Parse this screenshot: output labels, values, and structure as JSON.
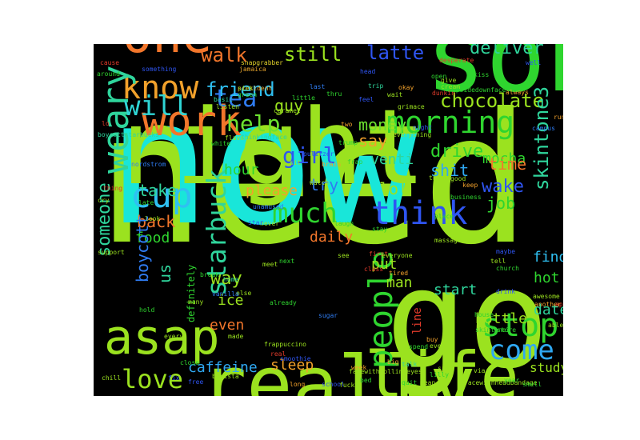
{
  "words": [
    {
      "text": "need",
      "color": "#9be21f"
    },
    {
      "text": "now",
      "color": "#19e6d9"
    },
    {
      "text": "go",
      "color": "#9be21f"
    },
    {
      "text": "right",
      "color": "#9be21f"
    },
    {
      "text": "sob",
      "color": "#2fd52f"
    },
    {
      "text": "really",
      "color": "#9be21f"
    },
    {
      "text": "life",
      "color": "#9be21f"
    },
    {
      "text": "asap",
      "color": "#9be21f"
    },
    {
      "text": "one",
      "color": "#f2762b"
    },
    {
      "text": "work",
      "color": "#f2762b"
    },
    {
      "text": "know",
      "color": "#f2a12b"
    },
    {
      "text": "weary",
      "color": "#2fd59c"
    },
    {
      "text": "will",
      "color": "#2fd5d5"
    },
    {
      "text": "tea",
      "color": "#2f7cf2"
    },
    {
      "text": "morning",
      "color": "#2fd52f"
    },
    {
      "text": "think",
      "color": "#2f55f2"
    },
    {
      "text": "much",
      "color": "#2fd52f"
    },
    {
      "text": "cup",
      "color": "#2fc0f2"
    },
    {
      "text": "starbuck",
      "color": "#2fd59c"
    },
    {
      "text": "people",
      "color": "#2fd52f"
    },
    {
      "text": "stop",
      "color": "#2fd52f"
    },
    {
      "text": "love",
      "color": "#9be21f"
    },
    {
      "text": "come",
      "color": "#2fa8f2"
    },
    {
      "text": "help",
      "color": "#6ce22f"
    },
    {
      "text": "girl",
      "color": "#2f55f2"
    },
    {
      "text": "chocolate",
      "color": "#9be21f"
    },
    {
      "text": "walk",
      "color": "#f2762b"
    },
    {
      "text": "still",
      "color": "#9be21f"
    },
    {
      "text": "latte",
      "color": "#2f55f2"
    },
    {
      "text": "deliver",
      "color": "#2fd59c"
    },
    {
      "text": "friend",
      "color": "#2fc0f2"
    },
    {
      "text": "guy",
      "color": "#9be21f"
    },
    {
      "text": "money",
      "color": "#6ce22f"
    },
    {
      "text": "say",
      "color": "#f2a12b"
    },
    {
      "text": "venti",
      "color": "#2fd59c"
    },
    {
      "text": "mocha",
      "color": "#2fd52f"
    },
    {
      "text": "hour",
      "color": "#2fd52f"
    },
    {
      "text": "drive",
      "color": "#2fd52f"
    },
    {
      "text": "try",
      "color": "#2f7cf2"
    },
    {
      "text": "shit",
      "color": "#2fa8f2"
    },
    {
      "text": "time",
      "color": "#f2762b"
    },
    {
      "text": "take",
      "color": "#2fd59c"
    },
    {
      "text": "please",
      "color": "#f2a12b"
    },
    {
      "text": "lol",
      "color": "#9be21f"
    },
    {
      "text": "wake",
      "color": "#2f55f2"
    },
    {
      "text": "job",
      "color": "#2fd52f"
    },
    {
      "text": "skintone3",
      "color": "#2fd59c"
    },
    {
      "text": "back",
      "color": "#f2762b"
    },
    {
      "text": "food",
      "color": "#2fd52f"
    },
    {
      "text": "daily",
      "color": "#f2762b"
    },
    {
      "text": "someone",
      "color": "#2fd59c"
    },
    {
      "text": "boycott",
      "color": "#2f7cf2"
    },
    {
      "text": "us",
      "color": "#2fd59c"
    },
    {
      "text": "way",
      "color": "#9be21f"
    },
    {
      "text": "put",
      "color": "#9be21f"
    },
    {
      "text": "man",
      "color": "#9be21f"
    },
    {
      "text": "find",
      "color": "#2fc0f2"
    },
    {
      "text": "hot",
      "color": "#2fd52f"
    },
    {
      "text": "start",
      "color": "#2fd59c"
    },
    {
      "text": "date",
      "color": "#2fd59c"
    },
    {
      "text": "ice",
      "color": "#9be21f"
    },
    {
      "text": "even",
      "color": "#f2762b"
    },
    {
      "text": "line",
      "color": "#e23b2b"
    },
    {
      "text": "bottle",
      "color": "#9be21f"
    },
    {
      "text": "caffeine",
      "color": "#2fa8f2"
    },
    {
      "text": "sleep",
      "color": "#f2a12b"
    },
    {
      "text": "study",
      "color": "#9be21f"
    },
    {
      "text": "definitely",
      "color": "#2fd52f"
    },
    {
      "text": "snapgrabber",
      "color": "#e2d22b"
    },
    {
      "text": "jamaica",
      "color": "#e2a12b"
    },
    {
      "text": "something",
      "color": "#2f55f2"
    },
    {
      "text": "president",
      "color": "#e2a12b"
    },
    {
      "text": "green",
      "color": "#2fd52f"
    },
    {
      "text": "caramel",
      "color": "#9be21f"
    },
    {
      "text": "trip",
      "color": "#2fd59c"
    },
    {
      "text": "dunkin",
      "color": "#e23b2b"
    },
    {
      "text": "okay",
      "color": "#f2a12b"
    },
    {
      "text": "cream",
      "color": "#9be21f"
    },
    {
      "text": "give",
      "color": "#9be21f"
    },
    {
      "text": "desperate",
      "color": "#e23b2b"
    },
    {
      "text": "head",
      "color": "#2f55f2"
    },
    {
      "text": "open",
      "color": "#2fd52f"
    },
    {
      "text": "around",
      "color": "#2fd52f"
    },
    {
      "text": "cause",
      "color": "#e23b2b"
    },
    {
      "text": "basic",
      "color": "#2fd59c"
    },
    {
      "text": "listen",
      "color": "#9be21f"
    },
    {
      "text": "little",
      "color": "#2fd52f"
    },
    {
      "text": "thru",
      "color": "#2fd52f"
    },
    {
      "text": "feel",
      "color": "#2f55f2"
    },
    {
      "text": "wait",
      "color": "#9be21f"
    },
    {
      "text": "grimace",
      "color": "#9be21f"
    },
    {
      "text": "upsidedownface",
      "color": "#2fd52f"
    },
    {
      "text": "always",
      "color": "#f2a12b"
    },
    {
      "text": "boycottstarbucks",
      "color": "#2fd59c"
    },
    {
      "text": "thinkingface",
      "color": "#2fd59c"
    },
    {
      "text": "white",
      "color": "#2fd52f"
    },
    {
      "text": "flavor",
      "color": "#9be21f"
    },
    {
      "text": "trump",
      "color": "#2fd52f"
    },
    {
      "text": "everything",
      "color": "#9be21f"
    },
    {
      "text": "night",
      "color": "#2f55f2"
    },
    {
      "text": "two",
      "color": "#f2a12b"
    },
    {
      "text": "pulitzer",
      "color": "#2f55f2"
    },
    {
      "text": "frap",
      "color": "#2fd52f"
    },
    {
      "text": "sit",
      "color": "#9be21f"
    },
    {
      "text": "brain",
      "color": "#f2a12b"
    },
    {
      "text": "nordstrom",
      "color": "#2f7cf2"
    },
    {
      "text": "watch",
      "color": "#9be21f"
    },
    {
      "text": "thank",
      "color": "#9be21f"
    },
    {
      "text": "good",
      "color": "#9be21f"
    },
    {
      "text": "keep",
      "color": "#f2a12b"
    },
    {
      "text": "business",
      "color": "#2fd52f"
    },
    {
      "text": "unamused",
      "color": "#2f7cf2"
    },
    {
      "text": "never",
      "color": "#9be21f"
    },
    {
      "text": "star",
      "color": "#2f55f2"
    },
    {
      "text": "laugh",
      "color": "#2fd52f"
    },
    {
      "text": "stay",
      "color": "#2fd52f"
    },
    {
      "text": "place",
      "color": "#2fd52f"
    },
    {
      "text": "massage",
      "color": "#9be21f"
    },
    {
      "text": "thing",
      "color": "#e23b2b"
    },
    {
      "text": "look",
      "color": "#9be21f"
    },
    {
      "text": "late",
      "color": "#2fd52f"
    },
    {
      "text": "cry",
      "color": "#9be21f"
    },
    {
      "text": "support",
      "color": "#9be21f"
    },
    {
      "text": "break",
      "color": "#2fd52f"
    },
    {
      "text": "first",
      "color": "#e23b2b"
    },
    {
      "text": "everyone",
      "color": "#9be21f"
    },
    {
      "text": "class",
      "color": "#e23b2b"
    },
    {
      "text": "tired",
      "color": "#f2a12b"
    },
    {
      "text": "next",
      "color": "#2fd52f"
    },
    {
      "text": "meet",
      "color": "#9be21f"
    },
    {
      "text": "see",
      "color": "#9be21f"
    },
    {
      "text": "tell",
      "color": "#9be21f"
    },
    {
      "text": "church",
      "color": "#2fd52f"
    },
    {
      "text": "home",
      "color": "#2fd59c"
    },
    {
      "text": "else",
      "color": "#9be21f"
    },
    {
      "text": "hold",
      "color": "#2fd52f"
    },
    {
      "text": "many",
      "color": "#9be21f"
    },
    {
      "text": "vanilla",
      "color": "#2f7cf2"
    },
    {
      "text": "already",
      "color": "#2fd52f"
    },
    {
      "text": "sugar",
      "color": "#2f7cf2"
    },
    {
      "text": "awesome",
      "color": "#9be21f"
    },
    {
      "text": "another",
      "color": "#f2a12b"
    },
    {
      "text": "house",
      "color": "#2fd52f"
    },
    {
      "text": "apple",
      "color": "#e23b2b"
    },
    {
      "text": "skintone1",
      "color": "#2fd52f"
    },
    {
      "text": "store",
      "color": "#2fd52f"
    },
    {
      "text": "every",
      "color": "#9be21f"
    },
    {
      "text": "made",
      "color": "#9be21f"
    },
    {
      "text": "frappuccino",
      "color": "#9be21f"
    },
    {
      "text": "spend",
      "color": "#2fd52f"
    },
    {
      "text": "talk",
      "color": "#2fd59c"
    },
    {
      "text": "ever",
      "color": "#9be21f"
    },
    {
      "text": "buy",
      "color": "#f2a12b"
    },
    {
      "text": "lilly",
      "color": "#2fd52f"
    },
    {
      "text": "close",
      "color": "#2fd52f"
    },
    {
      "text": "fix",
      "color": "#2f55f2"
    },
    {
      "text": "free",
      "color": "#2f55f2"
    },
    {
      "text": "barista",
      "color": "#9be21f"
    },
    {
      "text": "long",
      "color": "#f2a12b"
    },
    {
      "text": "school",
      "color": "#2f55f2"
    },
    {
      "text": "fuck",
      "color": "#9be21f"
    },
    {
      "text": "facewithrollingeyes",
      "color": "#9be21f"
    },
    {
      "text": "facewithheadbandage",
      "color": "#9be21f"
    },
    {
      "text": "smell",
      "color": "#2fd52f"
    },
    {
      "text": "sign",
      "color": "#9be21f"
    },
    {
      "text": "big",
      "color": "#f2a12b"
    },
    {
      "text": "week",
      "color": "#f2a12b"
    },
    {
      "text": "smoothie",
      "color": "#2f55f2"
    },
    {
      "text": "real",
      "color": "#e23b2b"
    },
    {
      "text": "sick",
      "color": "#9be21f"
    },
    {
      "text": "last",
      "color": "#2f7cf2"
    },
    {
      "text": "campus",
      "color": "#2f7cf2"
    },
    {
      "text": "run",
      "color": "#f2a12b"
    },
    {
      "text": "maybe",
      "color": "#2f55f2"
    },
    {
      "text": "drink",
      "color": "#2f55f2"
    },
    {
      "text": "able",
      "color": "#9be21f"
    },
    {
      "text": "quit",
      "color": "#2fd52f"
    },
    {
      "text": "mean",
      "color": "#9be21f"
    },
    {
      "text": "via",
      "color": "#9be21f"
    },
    {
      "text": "bed",
      "color": "#2fd52f"
    },
    {
      "text": "year",
      "color": "#2fd52f"
    },
    {
      "text": "kiss",
      "color": "#2fd52f"
    },
    {
      "text": "lo",
      "color": "#e23b2b"
    },
    {
      "text": "chill",
      "color": "#9be21f"
    },
    {
      "text": "well",
      "color": "#2f55f2"
    },
    {
      "text": "go",
      "color": "#9be21f"
    }
  ]
}
